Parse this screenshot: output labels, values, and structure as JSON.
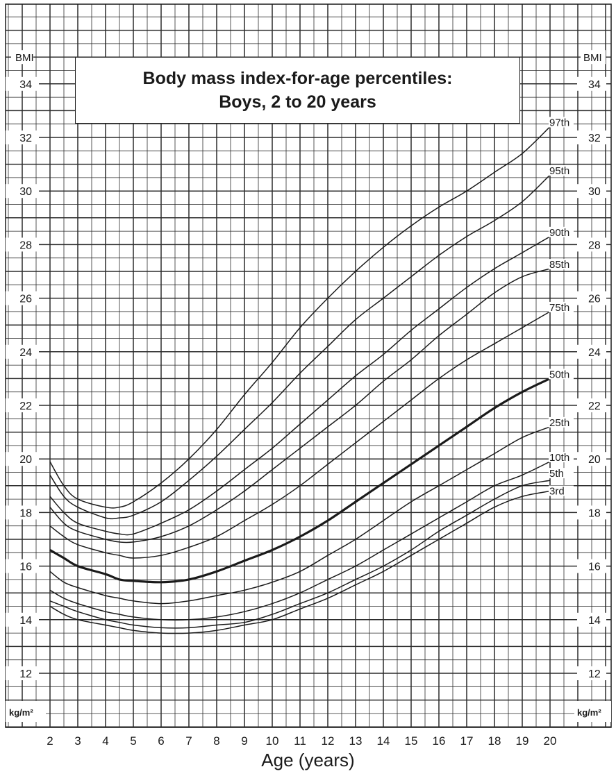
{
  "chart_data": {
    "type": "line",
    "title": "Body mass index-for-age percentiles:",
    "subtitle": "Boys, 2 to 20 years",
    "xlabel": "Age (years)",
    "ylabel": "BMI",
    "y_unit": "kg/m²",
    "xlim": [
      2,
      20
    ],
    "ylim": [
      11,
      35
    ],
    "x_ticks": [
      2,
      3,
      4,
      5,
      6,
      7,
      8,
      9,
      10,
      11,
      12,
      13,
      14,
      15,
      16,
      17,
      18,
      19,
      20
    ],
    "y_ticks": [
      12,
      14,
      16,
      18,
      20,
      22,
      24,
      26,
      28,
      30,
      32,
      34
    ],
    "grid": true,
    "x": [
      2,
      2.5,
      3,
      4,
      4.5,
      5,
      6,
      7,
      8,
      9,
      10,
      11,
      12,
      13,
      14,
      15,
      16,
      17,
      18,
      19,
      20
    ],
    "series": [
      {
        "name": "97th",
        "values": [
          19.9,
          19.0,
          18.5,
          18.2,
          18.2,
          18.4,
          19.1,
          20.0,
          21.1,
          22.4,
          23.6,
          24.9,
          26.0,
          27.0,
          27.9,
          28.7,
          29.4,
          30.0,
          30.7,
          31.4,
          32.4
        ]
      },
      {
        "name": "95th",
        "values": [
          19.4,
          18.6,
          18.2,
          17.8,
          17.8,
          17.9,
          18.4,
          19.2,
          20.1,
          21.1,
          22.1,
          23.2,
          24.2,
          25.2,
          26.0,
          26.8,
          27.6,
          28.3,
          28.9,
          29.6,
          30.6
        ]
      },
      {
        "name": "90th",
        "values": [
          18.6,
          18.0,
          17.6,
          17.3,
          17.2,
          17.2,
          17.6,
          18.1,
          18.8,
          19.6,
          20.4,
          21.3,
          22.2,
          23.1,
          23.9,
          24.8,
          25.6,
          26.4,
          27.1,
          27.7,
          28.3
        ]
      },
      {
        "name": "85th",
        "values": [
          18.2,
          17.6,
          17.3,
          17.0,
          16.9,
          16.9,
          17.1,
          17.5,
          18.1,
          18.8,
          19.6,
          20.4,
          21.2,
          22.0,
          22.9,
          23.7,
          24.6,
          25.4,
          26.2,
          26.8,
          27.1
        ]
      },
      {
        "name": "75th",
        "values": [
          17.5,
          17.1,
          16.8,
          16.5,
          16.4,
          16.3,
          16.4,
          16.7,
          17.1,
          17.7,
          18.3,
          19.0,
          19.8,
          20.6,
          21.4,
          22.2,
          23.0,
          23.7,
          24.3,
          24.9,
          25.5
        ]
      },
      {
        "name": "50th",
        "values": [
          16.6,
          16.3,
          16.0,
          15.7,
          15.5,
          15.45,
          15.4,
          15.5,
          15.8,
          16.2,
          16.6,
          17.1,
          17.7,
          18.4,
          19.1,
          19.8,
          20.5,
          21.2,
          21.9,
          22.5,
          23.0
        ]
      },
      {
        "name": "25th",
        "values": [
          15.8,
          15.4,
          15.2,
          14.9,
          14.8,
          14.7,
          14.6,
          14.7,
          14.9,
          15.1,
          15.4,
          15.8,
          16.4,
          17.0,
          17.7,
          18.4,
          19.0,
          19.6,
          20.2,
          20.8,
          21.2
        ]
      },
      {
        "name": "10th",
        "values": [
          15.1,
          14.8,
          14.6,
          14.3,
          14.2,
          14.1,
          14.0,
          14.0,
          14.1,
          14.3,
          14.6,
          15.0,
          15.5,
          16.0,
          16.6,
          17.2,
          17.8,
          18.4,
          19.0,
          19.4,
          19.9
        ]
      },
      {
        "name": "5th",
        "values": [
          14.7,
          14.5,
          14.3,
          14.0,
          13.9,
          13.8,
          13.7,
          13.7,
          13.8,
          13.9,
          14.2,
          14.6,
          15.0,
          15.5,
          16.0,
          16.6,
          17.3,
          17.9,
          18.5,
          19.0,
          19.2
        ]
      },
      {
        "name": "3rd",
        "values": [
          14.5,
          14.2,
          14.0,
          13.8,
          13.7,
          13.6,
          13.5,
          13.5,
          13.6,
          13.8,
          14.0,
          14.4,
          14.8,
          15.3,
          15.8,
          16.4,
          17.0,
          17.6,
          18.2,
          18.6,
          18.8
        ]
      }
    ]
  },
  "colors": {
    "ink": "#1a1a1a",
    "grid": "#2b2b2b",
    "background": "#ffffff"
  }
}
